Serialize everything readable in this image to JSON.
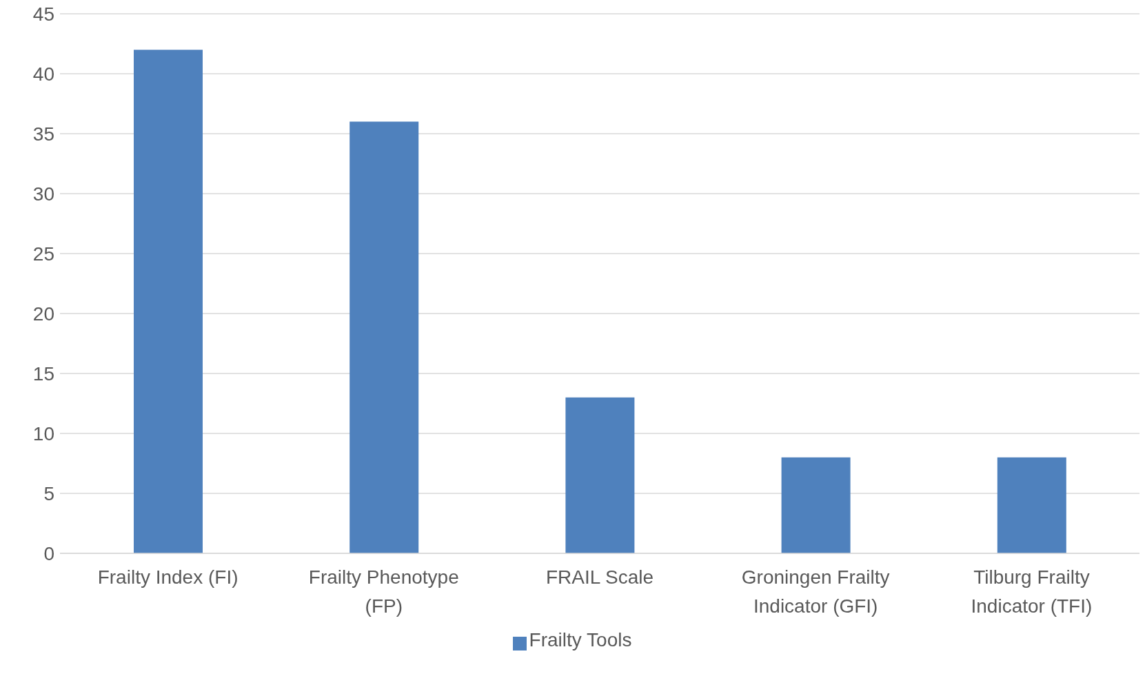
{
  "chart_data": {
    "type": "bar",
    "categories": [
      "Frailty Index (FI)",
      "Frailty Phenotype (FP)",
      "FRAIL Scale",
      "Groningen Frailty Indicator (GFI)",
      "Tilburg Frailty Indicator (TFI)"
    ],
    "series": [
      {
        "name": "Frailty Tools",
        "color": "#4f81bd",
        "values": [
          42,
          36,
          13,
          8,
          8
        ]
      }
    ],
    "ylim": [
      0,
      45
    ],
    "yticks": [
      0,
      5,
      10,
      15,
      20,
      25,
      30,
      35,
      40,
      45
    ],
    "grid": "y",
    "legend": "bottom"
  }
}
